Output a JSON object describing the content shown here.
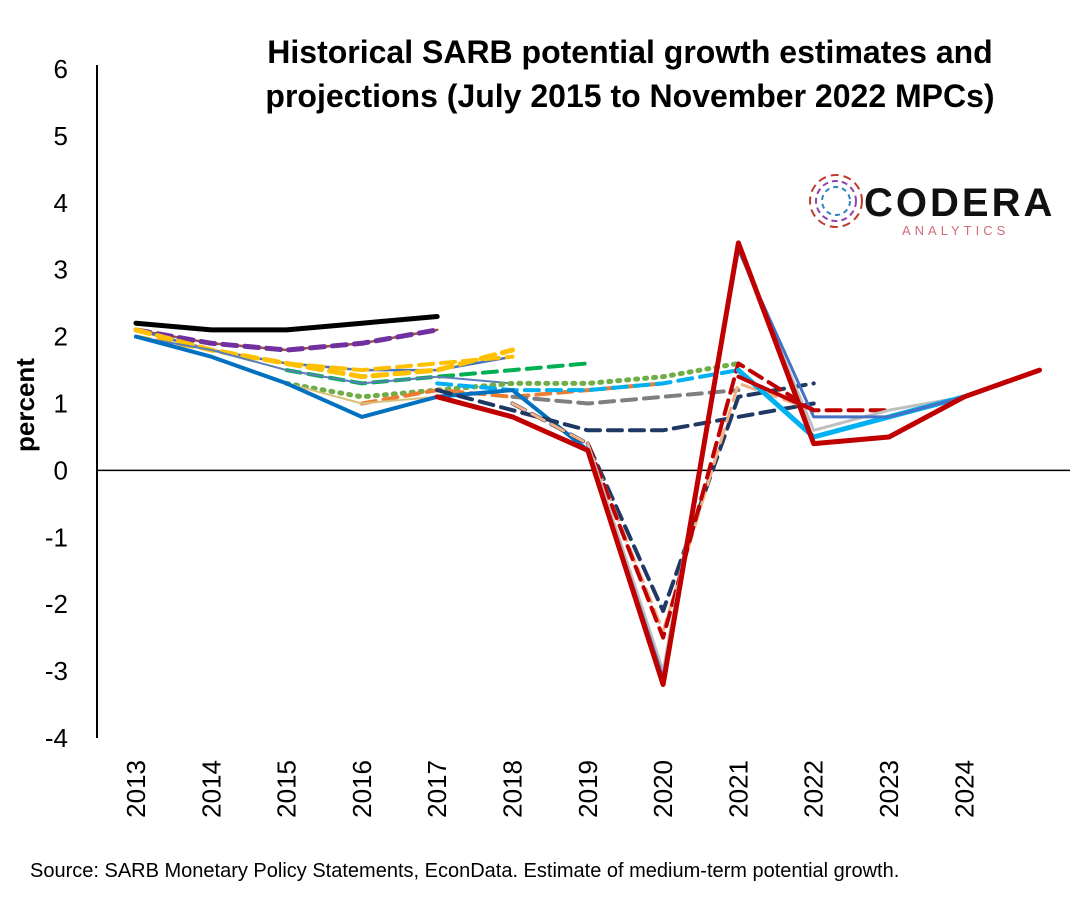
{
  "chart_data": {
    "type": "line",
    "title": "Historical SARB potential growth estimates and projections (July 2015 to November 2022 MPCs)",
    "ylabel": "percent",
    "xlabel": "",
    "ylim": [
      -4,
      6
    ],
    "yticks": [
      "6",
      "5",
      "4",
      "3",
      "2",
      "1",
      "0",
      "-1",
      "-2",
      "-3",
      "-4"
    ],
    "categories": [
      "2013",
      "2014",
      "2015",
      "2016",
      "2017",
      "2018",
      "2019",
      "2020",
      "2021",
      "2022",
      "2023",
      "2024"
    ],
    "grid": false,
    "source": "Source: SARB Monetary Policy Statements, EconData. Estimate of medium-term potential growth.",
    "logo_text": "CODERA",
    "logo_sub": "ANALYTICS",
    "series": [
      {
        "color": "#000000",
        "dash": "solid",
        "width": 5,
        "x": [
          2013,
          2014,
          2015,
          2016,
          2017
        ],
        "y": [
          2.2,
          2.1,
          2.1,
          2.2,
          2.3
        ]
      },
      {
        "color": "#9c5a32",
        "dash": "solid",
        "width": 2.5,
        "x": [
          2013,
          2014,
          2015,
          2016,
          2017
        ],
        "y": [
          2.1,
          1.9,
          1.8,
          1.9,
          2.1
        ]
      },
      {
        "color": "#7030a0",
        "dash": "dashed",
        "width": 5,
        "x": [
          2013,
          2014,
          2015,
          2016,
          2017
        ],
        "y": [
          2.1,
          1.9,
          1.8,
          1.9,
          2.1
        ]
      },
      {
        "color": "#4472c4",
        "dash": "solid",
        "width": 2.5,
        "x": [
          2013,
          2014,
          2015,
          2016,
          2017,
          2018
        ],
        "y": [
          2.1,
          1.8,
          1.6,
          1.5,
          1.5,
          1.7
        ]
      },
      {
        "color": "#ffc000",
        "dash": "dashed",
        "width": 5,
        "x": [
          2013,
          2014,
          2015,
          2016,
          2017,
          2018
        ],
        "y": [
          2.1,
          1.8,
          1.6,
          1.4,
          1.5,
          1.8
        ]
      },
      {
        "color": "#ffc000",
        "dash": "dashed",
        "width": 4,
        "x": [
          2013,
          2014,
          2015,
          2016,
          2017,
          2018
        ],
        "y": [
          2.0,
          1.8,
          1.6,
          1.5,
          1.6,
          1.7
        ]
      },
      {
        "color": "#00b050",
        "dash": "dashed",
        "width": 4,
        "x": [
          2015,
          2016,
          2017,
          2018,
          2019
        ],
        "y": [
          1.5,
          1.3,
          1.4,
          1.5,
          1.6
        ]
      },
      {
        "color": "#5b7db8",
        "dash": "solid",
        "width": 2,
        "x": [
          2013,
          2014,
          2015,
          2016,
          2017,
          2018
        ],
        "y": [
          2.0,
          1.8,
          1.5,
          1.3,
          1.4,
          1.3
        ]
      },
      {
        "color": "#70ad47",
        "dash": "dotted",
        "width": 5,
        "x": [
          2015,
          2016,
          2017,
          2018,
          2019,
          2020,
          2021
        ],
        "y": [
          1.3,
          1.1,
          1.2,
          1.3,
          1.3,
          1.4,
          1.6
        ]
      },
      {
        "color": "#ed7d31",
        "dash": "dashed",
        "width": 4,
        "x": [
          2016,
          2017,
          2018,
          2019,
          2020
        ],
        "y": [
          1.0,
          1.2,
          1.1,
          1.2,
          1.3
        ]
      },
      {
        "color": "#00b0f0",
        "dash": "dashed",
        "width": 4,
        "x": [
          2017,
          2018,
          2019,
          2020,
          2021
        ],
        "y": [
          1.3,
          1.2,
          1.2,
          1.3,
          1.5
        ]
      },
      {
        "color": "#7f7f7f",
        "dash": "dashed",
        "width": 4,
        "x": [
          2018,
          2019,
          2020,
          2021
        ],
        "y": [
          1.1,
          1.0,
          1.1,
          1.2
        ]
      },
      {
        "color": "#d8c27a",
        "dash": "solid",
        "width": 2,
        "x": [
          2013,
          2014,
          2015,
          2016,
          2017,
          2018
        ],
        "y": [
          2.0,
          1.7,
          1.3,
          1.0,
          1.1,
          1.2
        ]
      },
      {
        "color": "#0070c0",
        "dash": "solid",
        "width": 4,
        "x": [
          2013,
          2014,
          2015,
          2016,
          2017,
          2018,
          2019
        ],
        "y": [
          2.0,
          1.7,
          1.3,
          0.8,
          1.1,
          1.2,
          0.3
        ]
      },
      {
        "color": "#1f3864",
        "dash": "dashed",
        "width": 4,
        "x": [
          2017,
          2018,
          2019,
          2020,
          2021,
          2022
        ],
        "y": [
          1.2,
          0.9,
          0.6,
          0.6,
          0.8,
          1.0
        ]
      },
      {
        "color": "#1f3864",
        "dash": "dashed",
        "width": 4,
        "x": [
          2018,
          2019,
          2020,
          2021,
          2022
        ],
        "y": [
          1.0,
          0.4,
          -2.1,
          1.1,
          1.3
        ]
      },
      {
        "color": "#f4b183",
        "dash": "dashed",
        "width": 3,
        "x": [
          2018,
          2019,
          2020,
          2021,
          2022
        ],
        "y": [
          1.0,
          0.4,
          -2.4,
          1.3,
          0.9
        ]
      },
      {
        "color": "#c00000",
        "dash": "dashed",
        "width": 4,
        "x": [
          2019,
          2020,
          2021,
          2022,
          2023
        ],
        "y": [
          0.4,
          -2.5,
          1.6,
          0.9,
          0.9
        ]
      },
      {
        "color": "#bfbfbf",
        "dash": "solid",
        "width": 3,
        "x": [
          2019,
          2020,
          2021,
          2022,
          2023,
          2024
        ],
        "y": [
          0.4,
          -3.0,
          3.3,
          0.6,
          0.9,
          1.1
        ]
      },
      {
        "color": "#00b0f0",
        "dash": "solid",
        "width": 5,
        "x": [
          2021,
          2022,
          2023,
          2024
        ],
        "y": [
          1.5,
          0.5,
          0.8,
          1.1
        ]
      },
      {
        "color": "#4472c4",
        "dash": "solid",
        "width": 3,
        "x": [
          2019,
          2020,
          2021,
          2022,
          2023,
          2024
        ],
        "y": [
          0.3,
          -3.1,
          3.3,
          0.8,
          0.8,
          1.1
        ]
      },
      {
        "color": "#c00000",
        "dash": "solid",
        "width": 5,
        "x": [
          2017,
          2018,
          2019,
          2020,
          2021,
          2022,
          2023,
          2024,
          2025
        ],
        "y": [
          1.1,
          0.8,
          0.3,
          -3.2,
          3.4,
          0.4,
          0.5,
          1.1,
          1.5
        ]
      },
      {
        "color": "#c00000",
        "dash": "solid",
        "width": 4,
        "x": [
          2021,
          2022
        ],
        "y": [
          1.4,
          0.9
        ]
      }
    ]
  }
}
